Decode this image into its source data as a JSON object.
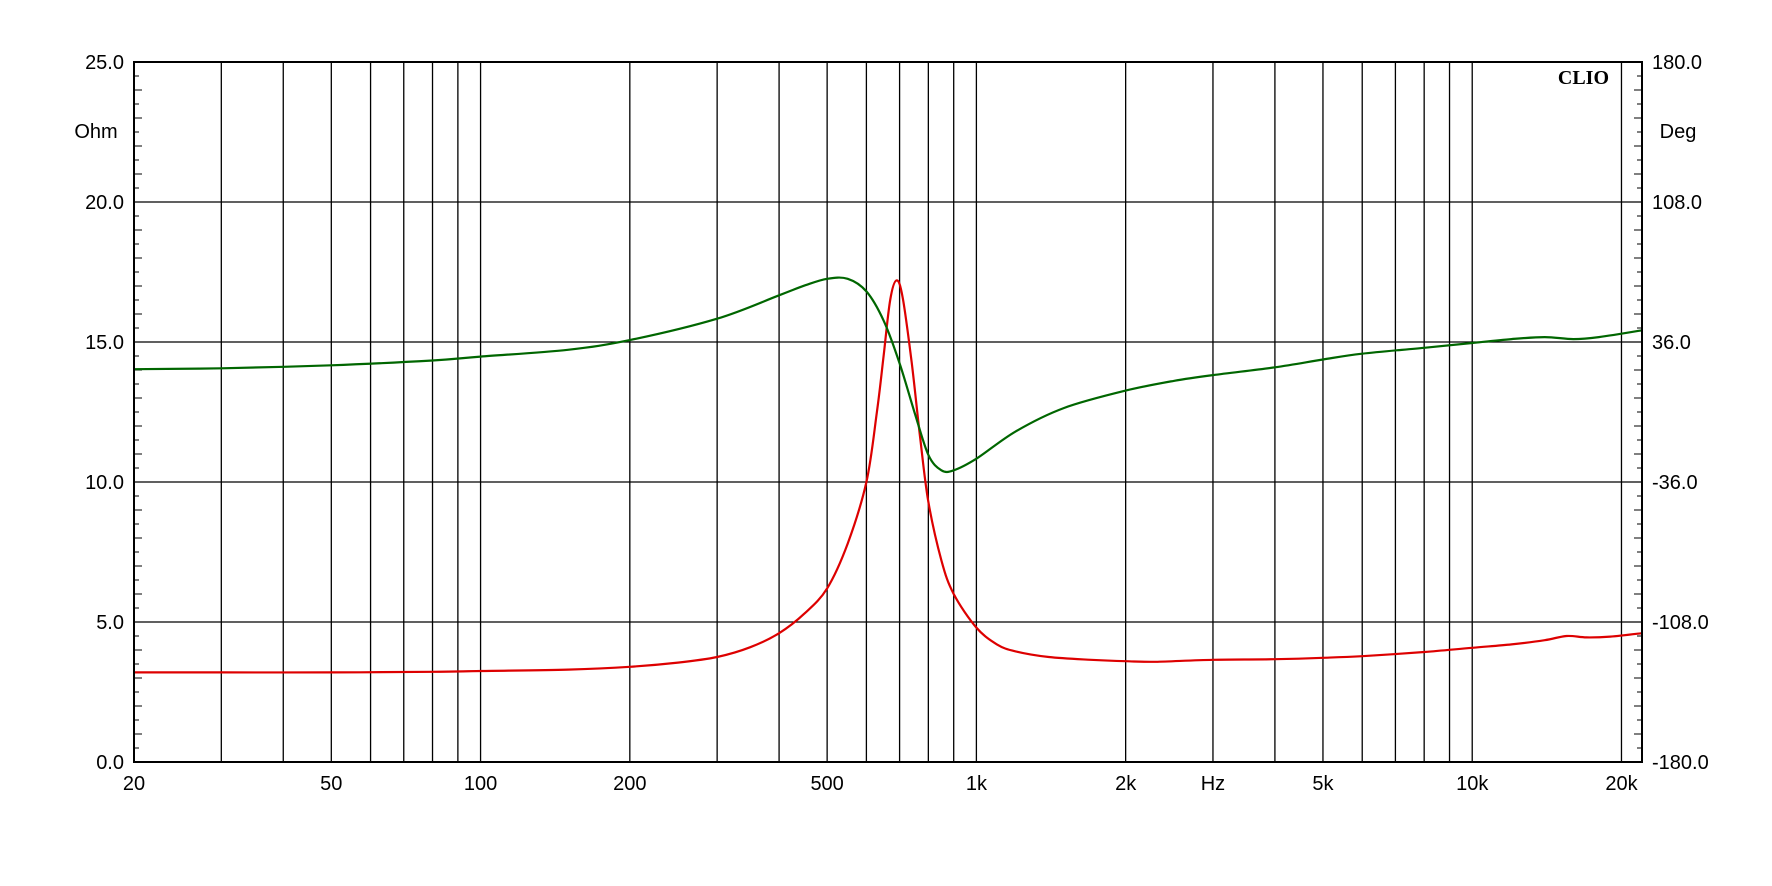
{
  "chart_data": {
    "type": "line",
    "brand": "CLIO",
    "x_scale": "log",
    "x_unit": "Hz",
    "xlim": [
      20,
      22000
    ],
    "x_ticks": [
      {
        "value": 20,
        "label": "20"
      },
      {
        "value": 50,
        "label": "50"
      },
      {
        "value": 100,
        "label": "100"
      },
      {
        "value": 200,
        "label": "200"
      },
      {
        "value": 500,
        "label": "500"
      },
      {
        "value": 1000,
        "label": "1k"
      },
      {
        "value": 2000,
        "label": "2k"
      },
      {
        "value": 5000,
        "label": "5k"
      },
      {
        "value": 10000,
        "label": "10k"
      },
      {
        "value": 20000,
        "label": "20k"
      }
    ],
    "x_grid": [
      20,
      30,
      40,
      50,
      60,
      70,
      80,
      90,
      100,
      200,
      300,
      400,
      500,
      600,
      700,
      800,
      900,
      1000,
      2000,
      3000,
      4000,
      5000,
      6000,
      7000,
      8000,
      9000,
      10000,
      20000
    ],
    "y_left": {
      "unit": "Ohm",
      "lim": [
        0,
        25
      ],
      "ticks": [
        {
          "value": 0,
          "label": "0.0"
        },
        {
          "value": 5,
          "label": "5.0"
        },
        {
          "value": 10,
          "label": "10.0"
        },
        {
          "value": 15,
          "label": "15.0"
        },
        {
          "value": 20,
          "label": "20.0"
        },
        {
          "value": 25,
          "label": "25.0"
        }
      ]
    },
    "y_right": {
      "unit": "Deg",
      "lim": [
        -180,
        180
      ],
      "ticks": [
        {
          "value": -180,
          "label": "-180.0"
        },
        {
          "value": -108,
          "label": "-108.0"
        },
        {
          "value": -36,
          "label": "-36.0"
        },
        {
          "value": 36,
          "label": "36.0"
        },
        {
          "value": 108,
          "label": "108.0"
        },
        {
          "value": 180,
          "label": "180.0"
        }
      ]
    },
    "grid": true,
    "series": [
      {
        "axis": "left",
        "color": "#dd0000",
        "points": [
          [
            20,
            3.2
          ],
          [
            30,
            3.2
          ],
          [
            50,
            3.2
          ],
          [
            80,
            3.22
          ],
          [
            100,
            3.25
          ],
          [
            150,
            3.3
          ],
          [
            200,
            3.4
          ],
          [
            250,
            3.55
          ],
          [
            300,
            3.75
          ],
          [
            350,
            4.1
          ],
          [
            400,
            4.6
          ],
          [
            450,
            5.3
          ],
          [
            500,
            6.2
          ],
          [
            550,
            7.8
          ],
          [
            600,
            10.0
          ],
          [
            630,
            12.5
          ],
          [
            650,
            14.5
          ],
          [
            670,
            16.5
          ],
          [
            690,
            17.2
          ],
          [
            710,
            16.6
          ],
          [
            740,
            14.3
          ],
          [
            770,
            11.6
          ],
          [
            800,
            9.3
          ],
          [
            850,
            7.2
          ],
          [
            900,
            6.0
          ],
          [
            1000,
            4.8
          ],
          [
            1100,
            4.2
          ],
          [
            1200,
            3.95
          ],
          [
            1400,
            3.75
          ],
          [
            1700,
            3.65
          ],
          [
            2000,
            3.6
          ],
          [
            2300,
            3.58
          ],
          [
            3000,
            3.65
          ],
          [
            4000,
            3.67
          ],
          [
            5000,
            3.72
          ],
          [
            6000,
            3.78
          ],
          [
            8000,
            3.93
          ],
          [
            10000,
            4.08
          ],
          [
            12000,
            4.2
          ],
          [
            14000,
            4.35
          ],
          [
            15500,
            4.5
          ],
          [
            17000,
            4.45
          ],
          [
            19000,
            4.48
          ],
          [
            22000,
            4.6
          ]
        ]
      },
      {
        "axis": "right",
        "color": "#006600",
        "points": [
          [
            20,
            22
          ],
          [
            30,
            22.5
          ],
          [
            50,
            24
          ],
          [
            80,
            26.5
          ],
          [
            100,
            28.5
          ],
          [
            150,
            32
          ],
          [
            200,
            37
          ],
          [
            300,
            48
          ],
          [
            400,
            60
          ],
          [
            450,
            65
          ],
          [
            500,
            68.5
          ],
          [
            550,
            68.5
          ],
          [
            600,
            62
          ],
          [
            650,
            47
          ],
          [
            700,
            25
          ],
          [
            750,
            0
          ],
          [
            800,
            -22
          ],
          [
            850,
            -30
          ],
          [
            900,
            -30
          ],
          [
            1000,
            -24
          ],
          [
            1200,
            -10
          ],
          [
            1500,
            2
          ],
          [
            2000,
            11
          ],
          [
            2500,
            16
          ],
          [
            3000,
            19
          ],
          [
            4000,
            23
          ],
          [
            5000,
            27
          ],
          [
            6000,
            30
          ],
          [
            8000,
            33
          ],
          [
            10000,
            35.5
          ],
          [
            12000,
            37.5
          ],
          [
            14000,
            38.5
          ],
          [
            16000,
            37.5
          ],
          [
            18000,
            38.5
          ],
          [
            22000,
            42
          ]
        ]
      }
    ]
  }
}
